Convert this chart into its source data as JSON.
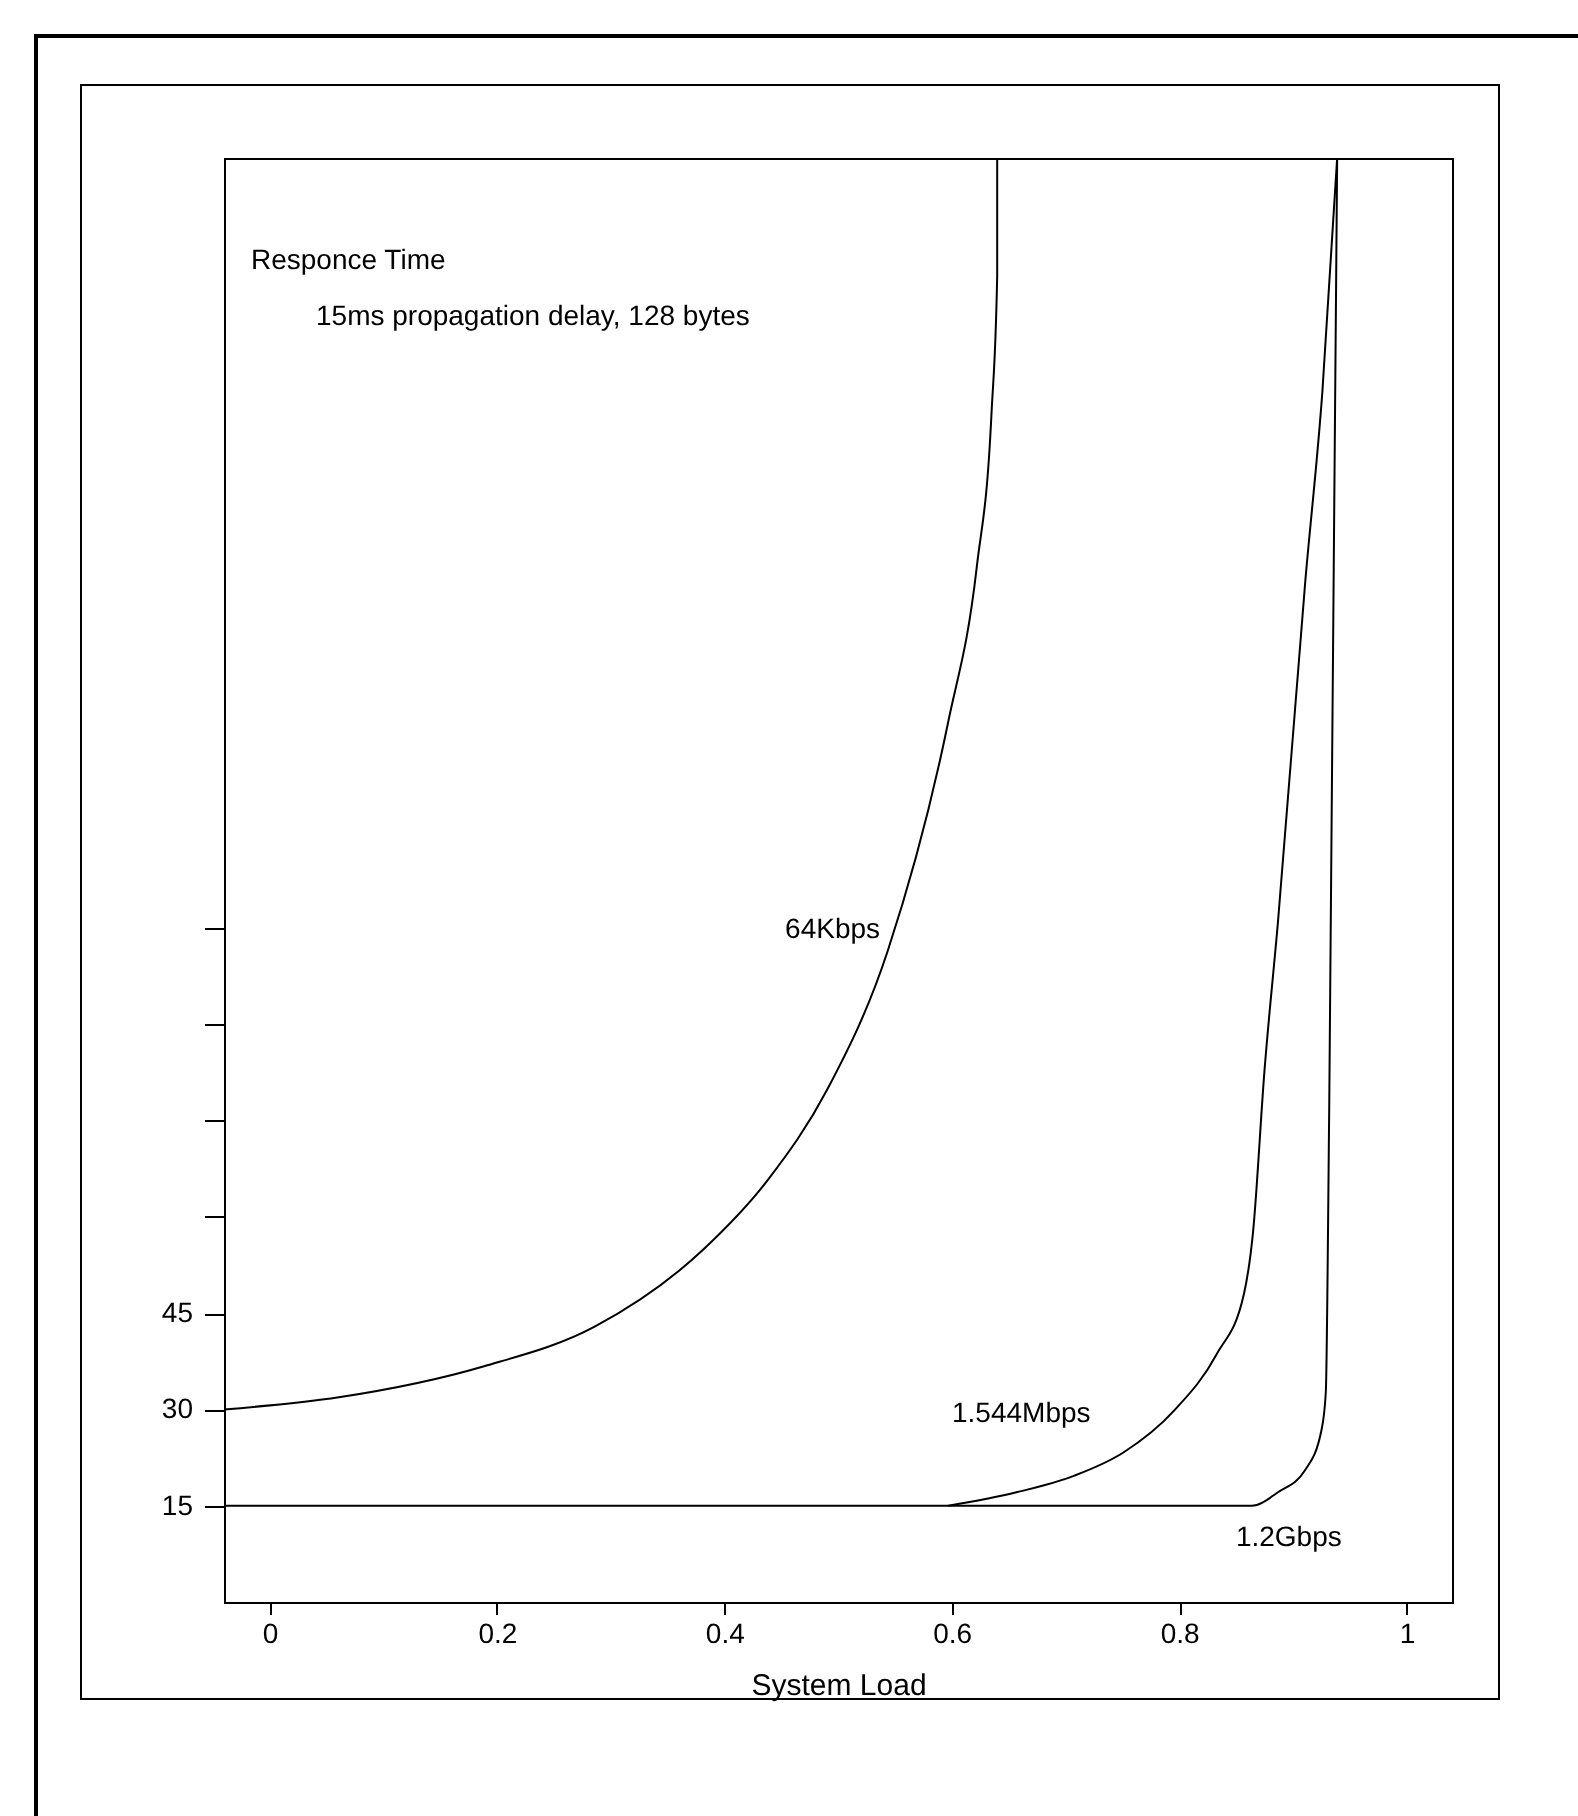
{
  "chart_data": {
    "type": "line",
    "title": "15ms propagation delay, 128 bytes",
    "xlabel": "System Load",
    "ylabel": "Responce Time",
    "xlim": [
      -0.04,
      1.04
    ],
    "ylim": [
      0,
      225
    ],
    "xticks": [
      0,
      0.2,
      0.4,
      0.6,
      0.8,
      1
    ],
    "yticks": [
      15,
      30,
      45,
      {
        "value": 60,
        "label": null
      },
      {
        "value": 75,
        "label": null
      },
      {
        "value": 90,
        "label": null
      },
      {
        "value": 105,
        "label": null
      }
    ],
    "grid": false,
    "legend": false,
    "series": [
      {
        "name": "64Kbps",
        "color": "#000000",
        "x": [
          -0.04,
          0.061,
          0.188,
          0.286,
          0.382,
          0.438,
          0.491,
          0.544,
          0.597,
          0.622,
          0.635,
          0.64,
          0.64
        ],
        "values": [
          30,
          31.9,
          36.7,
          42.9,
          55,
          65.7,
          80,
          101.6,
          137.2,
          161.2,
          185.2,
          206.6,
          225
        ]
      },
      {
        "name": "1.544Mbps",
        "color": "#000000",
        "x": [
          0.597,
          0.657,
          0.708,
          0.751,
          0.796,
          0.833,
          0.857,
          0.865,
          0.875,
          0.887,
          0.911,
          0.926,
          0.939
        ],
        "values": [
          15,
          17.1,
          19.7,
          23.3,
          29.9,
          38.6,
          48,
          57.6,
          82.6,
          106.1,
          159.1,
          188.6,
          225
        ]
      },
      {
        "name": "1.2Gbps",
        "color": "#000000",
        "x": [
          -0.04,
          0.864,
          0.887,
          0.911,
          0.925,
          0.929,
          0.932,
          0.939
        ],
        "values": [
          15,
          15,
          17.1,
          20.6,
          26.6,
          32.6,
          76.6,
          225
        ]
      }
    ]
  }
}
